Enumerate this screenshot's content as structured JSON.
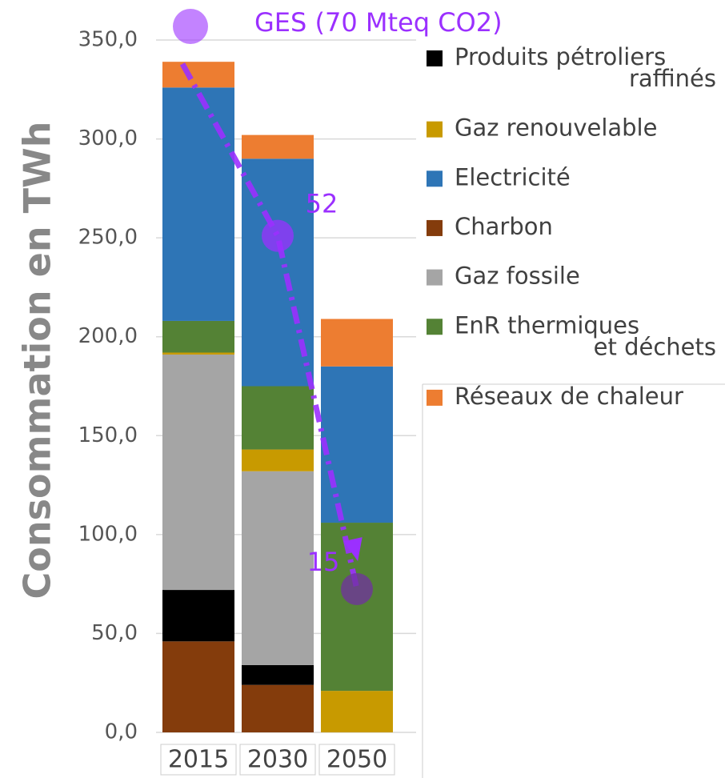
{
  "chart_data": {
    "type": "stacked_bar",
    "y_axis_label": "Consommation en TWh",
    "categories": [
      "2015",
      "2030",
      "2050"
    ],
    "ylim": [
      0,
      350
    ],
    "yticks": [
      {
        "value": 0,
        "label": "0,0"
      },
      {
        "value": 50,
        "label": "50,0"
      },
      {
        "value": 100,
        "label": "100,0"
      },
      {
        "value": 150,
        "label": "150,0"
      },
      {
        "value": 200,
        "label": "200,0"
      },
      {
        "value": 250,
        "label": "250,0"
      },
      {
        "value": 300,
        "label": "300,0"
      },
      {
        "value": 350,
        "label": "350,0"
      }
    ],
    "grid": true,
    "legend": "right",
    "stack_order": [
      3,
      0,
      4,
      1,
      5,
      2,
      6
    ],
    "series": [
      {
        "name": "Produits pétroliers raffinés",
        "color": "#000000",
        "values": [
          26,
          10,
          0
        ]
      },
      {
        "name": "Gaz renouvelable",
        "color": "#c89a00",
        "values": [
          1,
          11,
          21
        ]
      },
      {
        "name": "Electricité",
        "color": "#2e75b6",
        "values": [
          118,
          115,
          79
        ]
      },
      {
        "name": "Charbon",
        "color": "#843c0c",
        "values": [
          46,
          24,
          0
        ]
      },
      {
        "name": "Gaz fossile",
        "color": "#a5a5a5",
        "values": [
          119,
          98,
          0
        ]
      },
      {
        "name": "EnR thermiques et déchets",
        "color": "#548235",
        "values": [
          16,
          32,
          85
        ]
      },
      {
        "name": "Réseaux de chaleur",
        "color": "#ed7d31",
        "values": [
          13,
          12,
          24
        ]
      }
    ],
    "ges": {
      "name": "GES (70 Mteq CO2)",
      "color": "#9b30ff",
      "axis": "y2",
      "values": [
        70,
        52,
        15
      ],
      "value_labels": [
        null,
        "52",
        "15"
      ]
    },
    "y2lim": [
      0,
      72.5
    ]
  }
}
